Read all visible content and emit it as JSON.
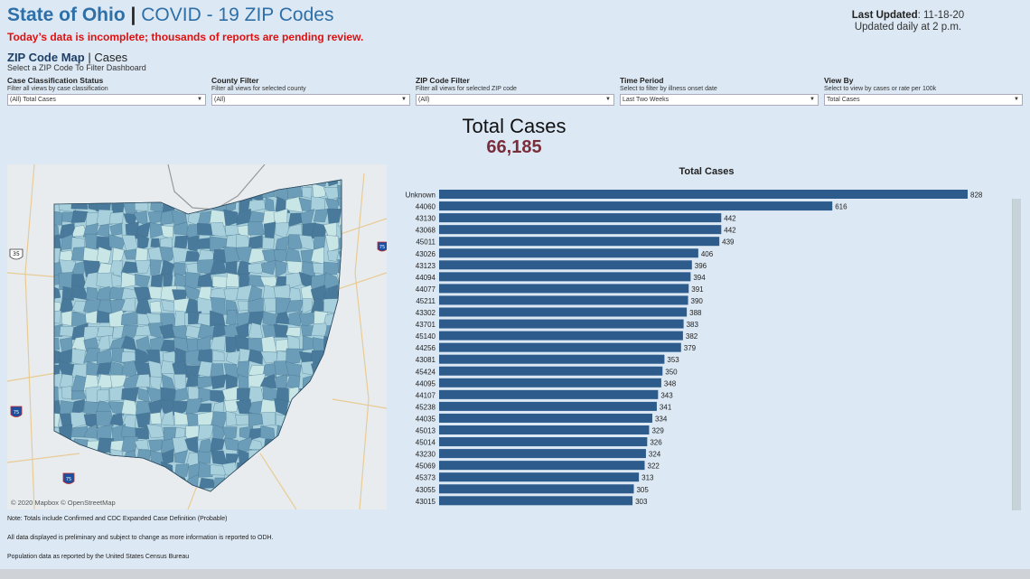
{
  "header": {
    "state": "State of Ohio",
    "separator": "|",
    "subtitle": "COVID - 19 ZIP Codes",
    "warning": "Today’s data is incomplete; thousands of reports are pending review.",
    "last_updated_label": "Last Updated",
    "last_updated_value": ": 11-18-20",
    "update_schedule": "Updated daily at 2 p.m."
  },
  "section": {
    "title_bold": "ZIP Code Map",
    "title_rest": " | Cases",
    "subtitle": "Select a ZIP Code To Filter Dashboard"
  },
  "filters": [
    {
      "label": "Case Classification Status",
      "desc": "Filter all views by case classification",
      "value": "(All) Total Cases"
    },
    {
      "label": "County Filter",
      "desc": "Filter all views for selected county",
      "value": "(All)"
    },
    {
      "label": "ZIP Code Filter",
      "desc": "Filter all views for selected ZIP code",
      "value": "(All)"
    },
    {
      "label": "Time Period",
      "desc": "Select to filter by illness onset date",
      "value": "Last Two Weeks"
    },
    {
      "label": "View By",
      "desc": "Select to view by cases or rate per 100k",
      "value": "Total Cases"
    }
  ],
  "total": {
    "title": "Total Cases",
    "value": "66,185"
  },
  "map": {
    "credit": "© 2020 Mapbox © OpenStreetMap",
    "shield_labels": [
      "35",
      "75",
      "75",
      "75"
    ],
    "colors": {
      "dark": "#4a7a9b",
      "mid": "#6b9cb8",
      "light": "#a8d0dc",
      "pale": "#c9e6e6"
    }
  },
  "chart_data": {
    "type": "bar",
    "orientation": "horizontal",
    "title": "Total Cases",
    "categories": [
      "Unknown",
      "44060",
      "43130",
      "43068",
      "45011",
      "43026",
      "43123",
      "44094",
      "44077",
      "45211",
      "43302",
      "43701",
      "45140",
      "44256",
      "43081",
      "45424",
      "44095",
      "44107",
      "45238",
      "44035",
      "45013",
      "45014",
      "43230",
      "45069",
      "45373",
      "43055",
      "43015"
    ],
    "values": [
      828,
      616,
      442,
      442,
      439,
      406,
      396,
      394,
      391,
      390,
      388,
      383,
      382,
      379,
      353,
      350,
      348,
      343,
      341,
      334,
      329,
      326,
      324,
      322,
      313,
      305,
      303
    ],
    "bar_color": "#2c5b8c"
  },
  "notes": [
    "Note: Totals include Confirmed and CDC Expanded Case Definition (Probable)",
    "All data displayed is preliminary and subject to change as more information is reported to ODH.",
    "Population data as reported by the United States Census Bureau"
  ]
}
